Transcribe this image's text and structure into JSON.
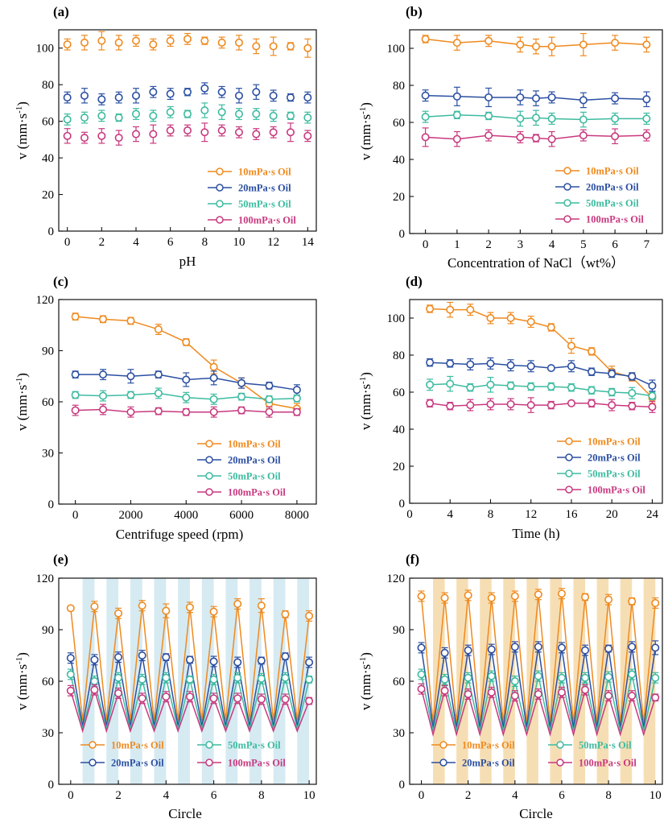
{
  "colors": {
    "oil10": "#ef8a1f",
    "oil20": "#2b4fa2",
    "oil50": "#3dbba0",
    "oil100": "#c8397f",
    "axis": "#111111",
    "stripe_e": "#d6eaf2",
    "stripe_f": "#f6deb4"
  },
  "chart_data": [
    {
      "panel": "(a)",
      "type": "line",
      "xlabel": "pH",
      "ylabel": "v (mm·s",
      "ylabel_sup": "-1",
      "ylabel_close": ")",
      "xlim": [
        -0.5,
        14.5
      ],
      "ylim": [
        0,
        110
      ],
      "xticks": [
        0,
        2,
        4,
        6,
        8,
        10,
        12,
        14
      ],
      "yticks": [
        0,
        20,
        40,
        60,
        80,
        100
      ],
      "x": [
        0,
        1,
        2,
        3,
        4,
        5,
        6,
        7,
        8,
        9,
        10,
        11,
        12,
        13,
        14
      ],
      "connect": false,
      "legend": "bottom-right",
      "legend_cols": 1,
      "series": [
        {
          "name": "10mPa·s Oil",
          "key": "oil10",
          "values": [
            102,
            103,
            104,
            103,
            104,
            102,
            104,
            105,
            104,
            103,
            103,
            101,
            101,
            101,
            100
          ],
          "err": [
            3,
            4,
            5,
            4,
            3,
            3,
            3,
            3,
            2,
            3,
            4,
            4,
            5,
            2,
            5
          ]
        },
        {
          "name": "20mPa·s Oil",
          "key": "oil20",
          "values": [
            73,
            74,
            72,
            73,
            74,
            76,
            75,
            76,
            78,
            76,
            74,
            76,
            74,
            73,
            73
          ],
          "err": [
            3,
            4,
            3,
            3,
            4,
            3,
            3,
            2,
            3,
            3,
            4,
            4,
            3,
            2,
            3
          ]
        },
        {
          "name": "50mPa·s Oil",
          "key": "oil50",
          "values": [
            61,
            62,
            63,
            62,
            64,
            63,
            65,
            64,
            66,
            65,
            64,
            64,
            63,
            63,
            62
          ],
          "err": [
            3,
            3,
            3,
            2,
            3,
            3,
            3,
            2,
            4,
            4,
            3,
            3,
            3,
            2,
            3
          ]
        },
        {
          "name": "100mPa·s Oil",
          "key": "oil100",
          "values": [
            52,
            51,
            52,
            51,
            53,
            53,
            55,
            55,
            54,
            55,
            54,
            53,
            54,
            54,
            52
          ],
          "err": [
            4,
            3,
            4,
            4,
            4,
            5,
            3,
            3,
            5,
            3,
            3,
            3,
            3,
            5,
            3
          ]
        }
      ]
    },
    {
      "panel": "(b)",
      "type": "line",
      "xlabel": "Concentration of NaCl（wt%）",
      "ylabel": "v (mm·s",
      "ylabel_sup": "-1",
      "ylabel_close": ")",
      "xlim": [
        -0.5,
        7.5
      ],
      "ylim": [
        0,
        110
      ],
      "xticks": [
        0,
        1,
        2,
        3,
        4,
        5,
        6,
        7
      ],
      "yticks": [
        0,
        20,
        40,
        60,
        80,
        100
      ],
      "x": [
        0,
        1,
        2,
        3,
        3.5,
        4,
        5,
        6,
        7
      ],
      "connect": true,
      "legend": "bottom-right",
      "legend_cols": 1,
      "series": [
        {
          "name": "10mPa·s Oil",
          "key": "oil10",
          "values": [
            105,
            103,
            104,
            102,
            101,
            101,
            102,
            103,
            102
          ],
          "err": [
            2,
            4,
            3,
            4,
            4,
            5,
            6,
            4,
            4
          ]
        },
        {
          "name": "20mPa·s Oil",
          "key": "oil20",
          "values": [
            74.5,
            74,
            73.5,
            73.5,
            73,
            73.5,
            72,
            73,
            72.5
          ],
          "err": [
            3,
            5,
            5,
            4,
            4,
            3,
            4,
            3,
            4
          ]
        },
        {
          "name": "50mPa·s Oil",
          "key": "oil50",
          "values": [
            63,
            64,
            63.5,
            62,
            62.5,
            62,
            61.5,
            62,
            62
          ],
          "err": [
            3,
            2,
            2,
            4,
            4,
            3,
            4,
            3,
            3
          ]
        },
        {
          "name": "100mPa·s Oil",
          "key": "oil100",
          "values": [
            52,
            51,
            53,
            52,
            51.5,
            51,
            53,
            52.5,
            53
          ],
          "err": [
            5,
            4,
            3,
            3,
            2,
            4,
            3,
            4,
            3
          ]
        }
      ]
    },
    {
      "panel": "(c)",
      "type": "line",
      "xlabel": "Centrifuge speed (rpm)",
      "ylabel": "v (mm·s",
      "ylabel_sup": "-1",
      "ylabel_close": ")",
      "xlim": [
        -600,
        8700
      ],
      "ylim": [
        0,
        120
      ],
      "xticks": [
        0,
        2000,
        4000,
        6000,
        8000
      ],
      "yticks": [
        0,
        30,
        60,
        90,
        120
      ],
      "x": [
        0,
        1000,
        2000,
        3000,
        4000,
        5000,
        6000,
        7000,
        8000
      ],
      "connect": true,
      "legend": "bottom-right",
      "legend_cols": 1,
      "series": [
        {
          "name": "10mPa·s Oil",
          "key": "oil10",
          "values": [
            110,
            108.5,
            107.5,
            102.5,
            95,
            80.5,
            71,
            59,
            56
          ],
          "err": [
            2,
            2,
            2,
            3,
            2,
            4,
            3,
            3,
            3
          ]
        },
        {
          "name": "20mPa·s Oil",
          "key": "oil20",
          "values": [
            76,
            76,
            75,
            76,
            73,
            74,
            71,
            69.5,
            67
          ],
          "err": [
            2,
            3,
            4,
            2,
            4,
            4,
            3,
            2,
            3
          ]
        },
        {
          "name": "50mPa·s Oil",
          "key": "oil50",
          "values": [
            64,
            63.5,
            64,
            65,
            62.5,
            61.5,
            63,
            61.5,
            62
          ],
          "err": [
            2,
            3,
            2,
            3,
            3,
            3,
            2,
            2,
            2
          ]
        },
        {
          "name": "100mPa·s Oil",
          "key": "oil100",
          "values": [
            55,
            55.5,
            54,
            54.5,
            54,
            54,
            55,
            54,
            54
          ],
          "err": [
            3,
            3,
            3,
            2,
            2,
            3,
            2,
            3,
            2
          ]
        }
      ]
    },
    {
      "panel": "(d)",
      "type": "line",
      "xlabel": "Time (h)",
      "ylabel": "v (mm·s",
      "ylabel_sup": "-1",
      "ylabel_close": ")",
      "xlim": [
        0,
        25
      ],
      "ylim": [
        0,
        110
      ],
      "xticks": [
        0,
        4,
        8,
        12,
        16,
        20,
        24
      ],
      "yticks": [
        0,
        20,
        40,
        60,
        80,
        100
      ],
      "x": [
        2,
        4,
        6,
        8,
        10,
        12,
        14,
        16,
        18,
        20,
        22,
        24
      ],
      "connect": true,
      "legend": "bottom-right",
      "legend_cols": 1,
      "series": [
        {
          "name": "10mPa·s Oil",
          "key": "oil10",
          "values": [
            105,
            104.5,
            104.5,
            100,
            100,
            98,
            95,
            85,
            82,
            71,
            68,
            57
          ],
          "err": [
            2,
            4,
            3,
            3,
            3,
            3,
            2,
            4,
            2,
            3,
            2,
            3
          ]
        },
        {
          "name": "20mPa·s Oil",
          "key": "oil20",
          "values": [
            76,
            75.5,
            75,
            75.5,
            74.5,
            74,
            73,
            74,
            71,
            70,
            68.5,
            63.5
          ],
          "err": [
            2,
            2,
            3,
            3,
            3,
            3,
            1,
            3,
            2,
            2,
            2,
            3
          ]
        },
        {
          "name": "50mPa·s Oil",
          "key": "oil50",
          "values": [
            64,
            64.5,
            62.5,
            64,
            63.5,
            63,
            63,
            62.5,
            61,
            60,
            59.5,
            58
          ],
          "err": [
            3,
            4,
            2,
            4,
            2,
            2,
            2,
            2,
            2,
            2,
            3,
            2
          ]
        },
        {
          "name": "100mPa·s Oil",
          "key": "oil100",
          "values": [
            54,
            52.5,
            53,
            53.5,
            53.5,
            53,
            53,
            54,
            54,
            53,
            52.5,
            52
          ],
          "err": [
            2,
            2,
            3,
            3,
            3,
            4,
            2,
            1,
            2,
            3,
            2,
            3
          ]
        }
      ]
    },
    {
      "panel": "(e)",
      "type": "line",
      "xlabel": "Circle",
      "ylabel": "v (mm·s",
      "ylabel_sup": "-1",
      "ylabel_close": ")",
      "xlim": [
        -0.5,
        10.3
      ],
      "ylim": [
        0,
        120
      ],
      "xticks": [
        0,
        2,
        4,
        6,
        8,
        10
      ],
      "yticks": [
        0,
        30,
        60,
        90,
        120
      ],
      "x": [
        0,
        1,
        2,
        3,
        4,
        5,
        6,
        7,
        8,
        9,
        10
      ],
      "valley_x": [
        0.5,
        1.5,
        2.5,
        3.5,
        4.5,
        5.5,
        6.5,
        7.5,
        8.5,
        9.5
      ],
      "stripes": [
        [
          0.5,
          1
        ],
        [
          1.5,
          2
        ],
        [
          2.5,
          3
        ],
        [
          3.5,
          4
        ],
        [
          4.5,
          5
        ],
        [
          5.5,
          6
        ],
        [
          6.5,
          7
        ],
        [
          7.5,
          8
        ],
        [
          8.5,
          9
        ],
        [
          9.5,
          10
        ]
      ],
      "stripe_key": "stripe_e",
      "connect": "zigzag",
      "legend": "bottom",
      "legend_cols": 2,
      "series": [
        {
          "name": "10mPa·s Oil",
          "key": "oil10",
          "values": [
            102.5,
            103.5,
            99.5,
            104,
            101,
            103,
            100.5,
            105,
            104,
            99,
            98
          ],
          "err": [
            1,
            3,
            3,
            3,
            4,
            3,
            3,
            3,
            4,
            2,
            3
          ],
          "valley": 37
        },
        {
          "name": "20mPa·s Oil",
          "key": "oil20",
          "values": [
            73.5,
            72.5,
            74,
            75,
            74,
            72.5,
            71.5,
            71,
            72,
            74.5,
            71
          ],
          "err": [
            3,
            3,
            3,
            3,
            2,
            2,
            3,
            3,
            2,
            2,
            3
          ],
          "valley": 34
        },
        {
          "name": "50mPa·s Oil",
          "key": "oil50",
          "values": [
            64,
            60,
            62,
            61,
            62,
            61,
            61,
            62,
            61.5,
            62,
            61
          ],
          "err": [
            3,
            3,
            3,
            3,
            3,
            2,
            3,
            3,
            3,
            3,
            2
          ],
          "valley": 32
        },
        {
          "name": "100mPa·s Oil",
          "key": "oil100",
          "values": [
            54.5,
            55,
            53,
            50,
            51,
            51,
            50,
            50,
            49.5,
            49.5,
            48.5
          ],
          "err": [
            3,
            3,
            3,
            3,
            3,
            3,
            3,
            3,
            3,
            3,
            2
          ],
          "valley": 31
        }
      ]
    },
    {
      "panel": "(f)",
      "type": "line",
      "xlabel": "Circle",
      "ylabel": "v (mm·s",
      "ylabel_sup": "-1",
      "ylabel_close": ")",
      "xlim": [
        -0.5,
        10.3
      ],
      "ylim": [
        0,
        120
      ],
      "xticks": [
        0,
        2,
        4,
        6,
        8,
        10
      ],
      "yticks": [
        0,
        30,
        60,
        90,
        120
      ],
      "x": [
        0,
        1,
        2,
        3,
        4,
        5,
        6,
        7,
        8,
        9,
        10
      ],
      "valley_x": [
        0.5,
        1.5,
        2.5,
        3.5,
        4.5,
        5.5,
        6.5,
        7.5,
        8.5,
        9.5
      ],
      "stripes": [
        [
          0.5,
          1
        ],
        [
          1.5,
          2
        ],
        [
          2.5,
          3
        ],
        [
          3.5,
          4
        ],
        [
          4.5,
          5
        ],
        [
          5.5,
          6
        ],
        [
          6.5,
          7
        ],
        [
          7.5,
          8
        ],
        [
          8.5,
          9
        ],
        [
          9.5,
          10
        ]
      ],
      "stripe_key": "stripe_f",
      "connect": "zigzag",
      "legend": "bottom",
      "legend_cols": 2,
      "series": [
        {
          "name": "10mPa·s Oil",
          "key": "oil10",
          "values": [
            109.5,
            108.5,
            110,
            108.5,
            109.5,
            110.5,
            111,
            109,
            107.5,
            106.5,
            105.5
          ],
          "err": [
            3,
            3,
            3,
            3,
            3,
            3,
            3,
            2,
            3,
            2,
            3
          ],
          "valley": 36
        },
        {
          "name": "20mPa·s Oil",
          "key": "oil20",
          "values": [
            79.5,
            76.5,
            78,
            78.5,
            80,
            80,
            79.5,
            78,
            79,
            80,
            79.5
          ],
          "err": [
            3,
            3,
            3,
            3,
            3,
            3,
            3,
            3,
            2,
            3,
            4
          ],
          "valley": 33
        },
        {
          "name": "50mPa·s Oil",
          "key": "oil50",
          "values": [
            64,
            61,
            62,
            63,
            60,
            63,
            62,
            62,
            62.5,
            64,
            62
          ],
          "err": [
            3,
            3,
            3,
            3,
            3,
            3,
            3,
            3,
            3,
            3,
            3
          ],
          "valley": 31
        },
        {
          "name": "100mPa·s Oil",
          "key": "oil100",
          "values": [
            55.5,
            54.5,
            52.5,
            53.5,
            51.5,
            52.5,
            53.5,
            55,
            51.5,
            51.5,
            50.5
          ],
          "err": [
            3,
            3,
            3,
            3,
            3,
            3,
            3,
            3,
            3,
            3,
            2
          ],
          "valley": 29
        }
      ]
    }
  ]
}
